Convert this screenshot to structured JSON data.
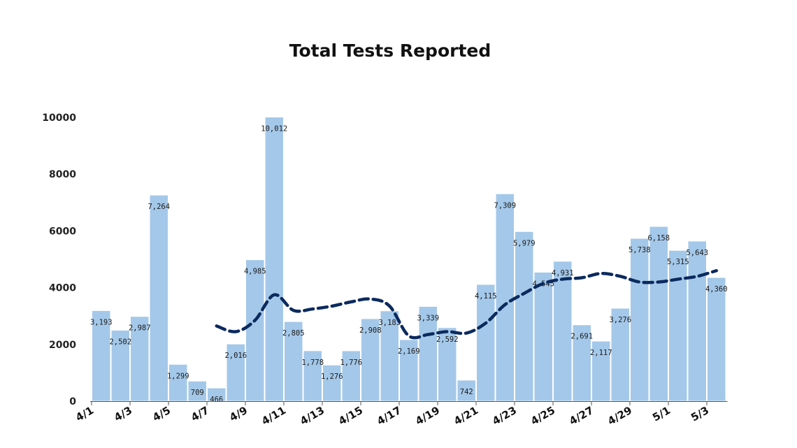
{
  "chart_data": {
    "type": "bar",
    "title": "Total Tests Reported",
    "xlabel": "",
    "ylabel": "",
    "ylim": [
      0,
      10000
    ],
    "yticks": [
      0,
      2000,
      4000,
      6000,
      8000,
      10000
    ],
    "ytick_labels": [
      "0",
      "2000",
      "4000",
      "6000",
      "8000",
      "10000"
    ],
    "categories": [
      "4/1",
      "4/2",
      "4/3",
      "4/4",
      "4/5",
      "4/6",
      "4/7",
      "4/8",
      "4/9",
      "4/10",
      "4/11",
      "4/12",
      "4/13",
      "4/14",
      "4/15",
      "4/16",
      "4/17",
      "4/18",
      "4/19",
      "4/20",
      "4/21",
      "4/22",
      "4/23",
      "4/24",
      "4/25",
      "4/26",
      "4/27",
      "4/28",
      "4/29",
      "4/30",
      "5/1",
      "5/2",
      "5/3"
    ],
    "xtick_labels": [
      "4/1",
      "4/3",
      "4/5",
      "4/7",
      "4/9",
      "4/11",
      "4/13",
      "4/15",
      "4/17",
      "4/19",
      "4/21",
      "4/23",
      "4/25",
      "4/27",
      "4/29",
      "5/1",
      "5/3"
    ],
    "values": [
      3193,
      2502,
      2987,
      7264,
      1299,
      709,
      466,
      2016,
      4985,
      10012,
      2805,
      1778,
      1276,
      1776,
      2908,
      3183,
      2169,
      3339,
      2592,
      742,
      4115,
      7309,
      5979,
      4545,
      4931,
      2691,
      2117,
      3276,
      5738,
      6158,
      5315,
      5643,
      4360
    ],
    "value_labels": [
      "3,193",
      "2,502",
      "2,987",
      "7,264",
      "1,299",
      "709",
      "466",
      "2,016",
      "4,985",
      "10,012",
      "2,805",
      "1,778",
      "1,276",
      "1,776",
      "2,908",
      "3,183",
      "2,169",
      "3,339",
      "2,592",
      "742",
      "4,115",
      "7,309",
      "5,979",
      "4,545",
      "4,931",
      "2,691",
      "2,117",
      "3,276",
      "5,738",
      "6,158",
      "5,315",
      "5,643",
      "4,360"
    ],
    "trend": {
      "style": "dashed",
      "x": [
        "4/7",
        "4/8",
        "4/9",
        "4/10",
        "4/11",
        "4/12",
        "4/13",
        "4/14",
        "4/15",
        "4/16",
        "4/17",
        "4/18",
        "4/19",
        "4/20",
        "4/21",
        "4/22",
        "4/23",
        "4/24",
        "4/25",
        "4/26",
        "4/27",
        "4/28",
        "4/29",
        "4/30",
        "5/1",
        "5/2",
        "5/3"
      ],
      "values": [
        2650,
        2450,
        2850,
        3750,
        3200,
        3250,
        3350,
        3500,
        3600,
        3350,
        2300,
        2350,
        2450,
        2400,
        2750,
        3400,
        3800,
        4150,
        4300,
        4350,
        4500,
        4400,
        4200,
        4200,
        4300,
        4400,
        4600
      ]
    },
    "grid": false,
    "legend": "none",
    "colors": {
      "bar": "#a4c8e9",
      "bar_edge": "#ffffff",
      "trend": "#0b2a5e",
      "axis": "#555555"
    }
  }
}
